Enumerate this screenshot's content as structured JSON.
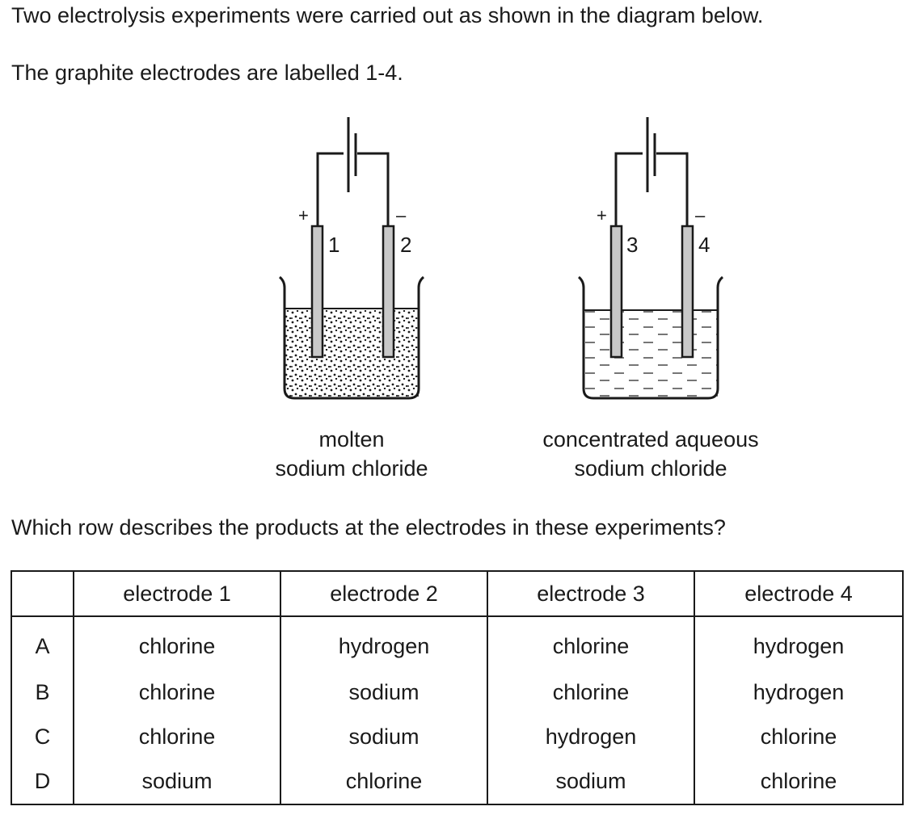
{
  "intro": {
    "line1": "Two electrolysis experiments were carried out as shown in the diagram below.",
    "line2": "The graphite electrodes are labelled 1-4."
  },
  "diagram": {
    "cell1": {
      "positive_sign": "+",
      "negative_sign": "–",
      "electrode_left": "1",
      "electrode_right": "2",
      "caption_line1": "molten",
      "caption_line2": "sodium chloride"
    },
    "cell2": {
      "positive_sign": "+",
      "negative_sign": "–",
      "electrode_left": "3",
      "electrode_right": "4",
      "caption_line1": "concentrated aqueous",
      "caption_line2": "sodium chloride"
    }
  },
  "question": "Which row describes the products at the electrodes in these experiments?",
  "table": {
    "headers": [
      "",
      "electrode 1",
      "electrode 2",
      "electrode 3",
      "electrode 4"
    ],
    "rows": [
      {
        "label": "A",
        "cells": [
          "chlorine",
          "hydrogen",
          "chlorine",
          "hydrogen"
        ]
      },
      {
        "label": "B",
        "cells": [
          "chlorine",
          "sodium",
          "chlorine",
          "hydrogen"
        ]
      },
      {
        "label": "C",
        "cells": [
          "chlorine",
          "sodium",
          "hydrogen",
          "chlorine"
        ]
      },
      {
        "label": "D",
        "cells": [
          "sodium",
          "chlorine",
          "sodium",
          "chlorine"
        ]
      }
    ]
  }
}
